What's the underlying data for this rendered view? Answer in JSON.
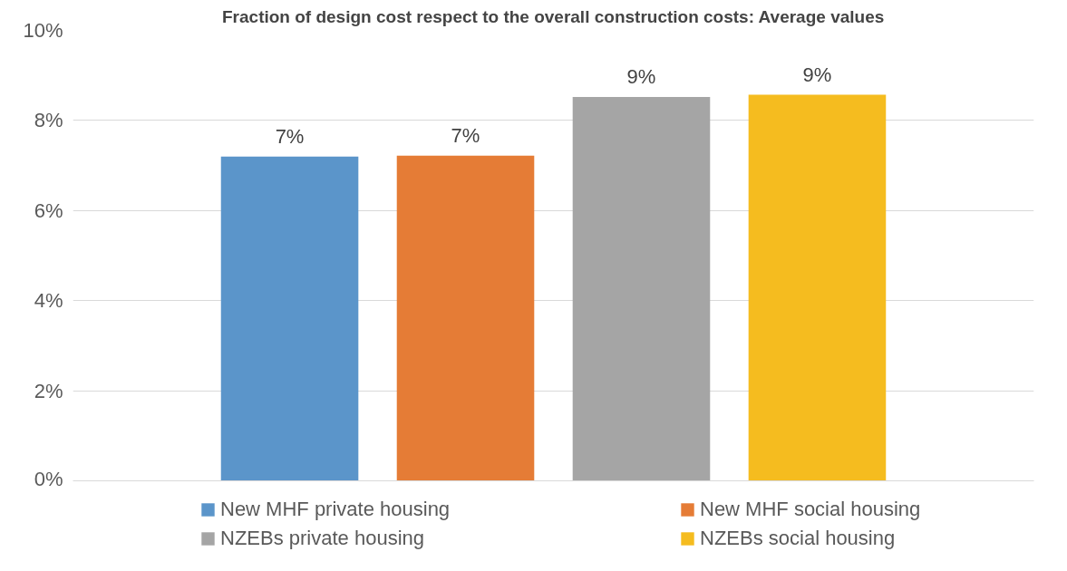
{
  "chart_data": {
    "type": "bar",
    "title": "Fraction of design cost respect to the overall construction costs: Average values",
    "categories": [
      null
    ],
    "series": [
      {
        "name": "New MHF private housing",
        "color": "#5b95ca",
        "values": [
          7.2
        ],
        "value_labels": [
          "7%"
        ]
      },
      {
        "name": "New MHF social housing",
        "color": "#e57c36",
        "values": [
          7.22
        ],
        "value_labels": [
          "7%"
        ]
      },
      {
        "name": "NZEBs private housing",
        "color": "#a5a5a5",
        "values": [
          8.52
        ],
        "value_labels": [
          "9%"
        ]
      },
      {
        "name": "NZEBs social housing",
        "color": "#f5bc1f",
        "values": [
          8.57
        ],
        "value_labels": [
          "9%"
        ]
      }
    ],
    "ylim": [
      0,
      10
    ],
    "yticks": [
      {
        "value": 0,
        "label": "0%"
      },
      {
        "value": 2,
        "label": "2%"
      },
      {
        "value": 4,
        "label": "4%"
      },
      {
        "value": 6,
        "label": "6%"
      },
      {
        "value": 8,
        "label": "8%"
      },
      {
        "value": 10,
        "label": "10%"
      }
    ],
    "grid": "y",
    "legend": "bottom"
  }
}
